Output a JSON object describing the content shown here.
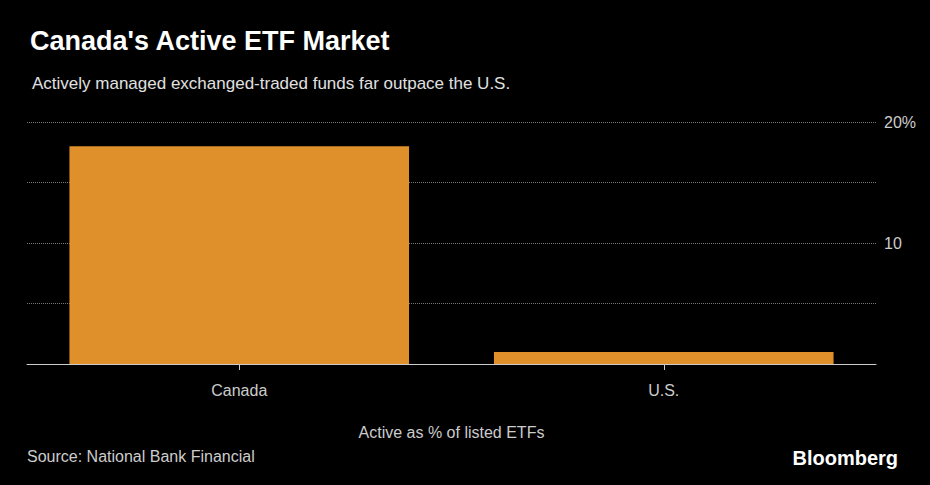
{
  "chart_data": {
    "type": "bar",
    "title": "Canada's Active ETF Market",
    "subtitle": "Actively managed exchanged-traded funds far outpace the U.S.",
    "categories": [
      "Canada",
      "U.S."
    ],
    "values": [
      18,
      1
    ],
    "color": "#e0902a",
    "x_label": "Active as % of listed ETFs",
    "ylim": [
      0,
      20
    ],
    "yticks": [
      10,
      {
        "value": 20,
        "label": "20%"
      }
    ],
    "grid": true,
    "source": "Source: National Bank Financial",
    "credit": "Bloomberg"
  }
}
